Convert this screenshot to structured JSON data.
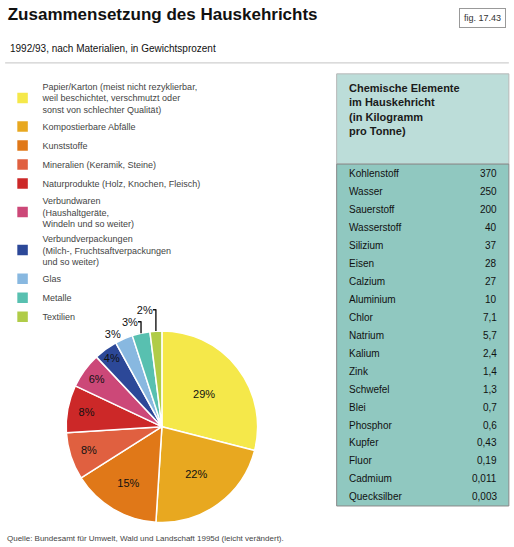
{
  "chart_data": [
    {
      "type": "pie",
      "title": "Zusammensetzung des Hauskehrichts",
      "subtitle": "1992/93, nach Materialien, in Gewichtsprozent",
      "categories": [
        "Papier/Karton (meist nicht rezyklierbar,\nweil beschichtet, verschmutzt oder\nsonst von schlechter Qualität)",
        "Kompostierbare Abfälle",
        "Kunststoffe",
        "Mineralien (Keramik, Steine)",
        "Naturprodukte (Holz, Knochen, Fleisch)",
        "Verbundwaren\n(Haushaltgeräte,\nWindeln und so weiter)",
        "Verbundverpackungen\n(Milch-, Fruchtsaftverpackungen\nund so weiter)",
        "Glas",
        "Metalle",
        "Textilien"
      ],
      "values": [
        29,
        22,
        15,
        8,
        8,
        6,
        4,
        3,
        3,
        2
      ],
      "value_labels": [
        "29%",
        "22%",
        "15%",
        "8%",
        "8%",
        "6%",
        "4%",
        "3%",
        "3%",
        "2%"
      ],
      "colors": [
        "#f5e84a",
        "#e8a820",
        "#e07818",
        "#e06040",
        "#cc2828",
        "#cc4878",
        "#2c4898",
        "#88b8e0",
        "#58c0b0",
        "#b0cc48"
      ],
      "data_labels": true,
      "legend": "upper left",
      "annotations": [
        "fig. 17.43",
        "Quelle: Bundesamt für Umwelt, Wald und Landschaft 1995d (leicht verändert)."
      ]
    },
    {
      "type": "table",
      "title": "Chemische Elemente\nim Hauskehricht\n(in Kilogramm\npro Tonne)",
      "categories": [
        "Kohlenstoff",
        "Wasser",
        "Sauerstoff",
        "Wasserstoff",
        "Silizium",
        "Eisen",
        "Calzium",
        "Aluminium",
        "Chlor",
        "Natrium",
        "Kalium",
        "Zink",
        "Schwefel",
        "Blei",
        "Phosphor",
        "Kupfer",
        "Fluor",
        "Cadmium",
        "Quecksilber"
      ],
      "values": [
        370,
        250,
        200,
        40,
        37,
        28,
        27,
        10,
        7.1,
        5.7,
        2.4,
        1.4,
        1.3,
        0.7,
        0.6,
        0.43,
        0.19,
        0.011,
        0.003
      ],
      "value_labels": [
        "370",
        "250",
        "200",
        "40",
        "37",
        "28",
        "27",
        "10",
        "7,1",
        "5,7",
        "2,4",
        "1,4",
        "1,3",
        "0,7",
        "0,6",
        "0,43",
        "0,19",
        "0,011",
        "0,003"
      ],
      "color": "#90c8c0"
    }
  ]
}
